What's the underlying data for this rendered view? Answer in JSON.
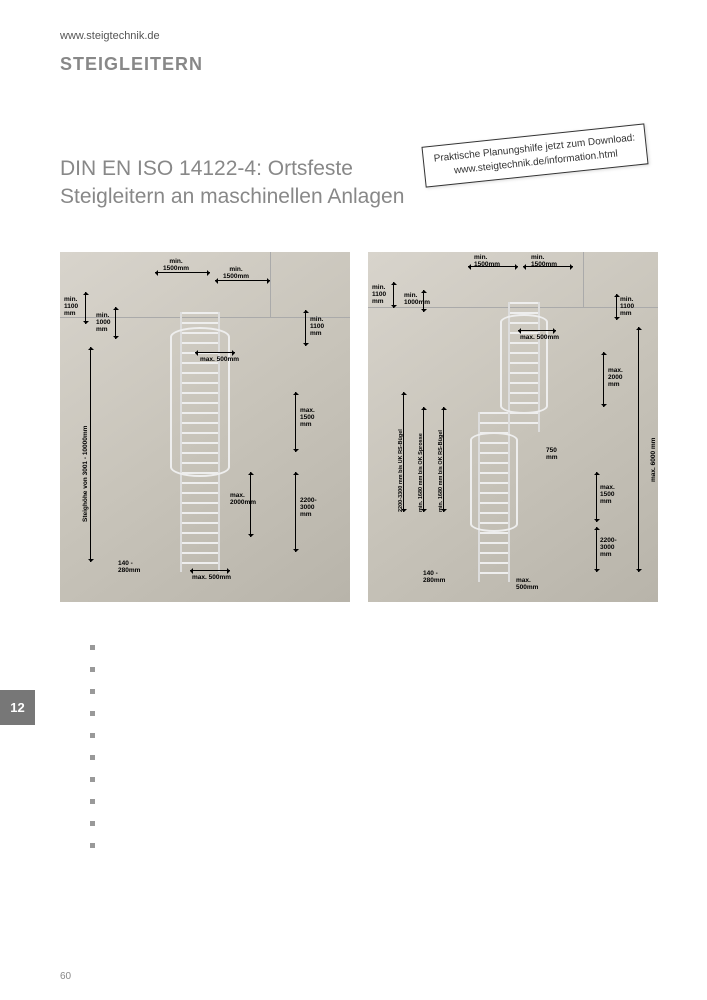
{
  "header": {
    "url": "www.steigtechnik.de",
    "section": "STEIGLEITERN"
  },
  "sticker": {
    "line1": "Praktische Planungshilfe jetzt zum Download:",
    "line2": "www.steigtechnik.de/information.html"
  },
  "heading": {
    "line1": "DIN EN ISO 14122-4: Ortsfeste",
    "line2": "Steigleitern an maschinellen Anlagen"
  },
  "diagram1": {
    "labels": {
      "top_left": "min.\n1500mm",
      "top_right": "min.\n1500mm",
      "side_1100": "min.\n1100\nmm",
      "side_1000": "min.\n1000\nmm",
      "right_1100": "min.\n1100\nmm",
      "max500_top": "max. 500mm",
      "steighoehe": "Steighöhe von 3001 - 10000mm",
      "max1500": "max.\n1500\nmm",
      "max2000": "max.\n2000mm",
      "range2200": "2200-\n3000\nmm",
      "bottom_140": "140 -\n280mm",
      "max500_bot": "max. 500mm"
    }
  },
  "diagram2": {
    "labels": {
      "top_left": "min.\n1500mm",
      "top_right": "min.\n1500mm",
      "side_1100": "min.\n1100\nmm",
      "side_1000": "min.\n1000mm",
      "right_1100": "min.\n1100\nmm",
      "max500_top": "max. 500mm",
      "max2000": "max.\n2000\nmm",
      "max6000": "max. 6000 mm",
      "range_rs": "2200-3300 mm bis UK RS-Bügel",
      "min1680": "min. 1680 mm bis OK Sprosse",
      "min1680_rs": "min. 1680 mm bis OK RS-Bügel",
      "dim750": "750\nmm",
      "max1500": "max.\n1500\nmm",
      "range2200": "2200-\n3000\nmm",
      "bottom_140": "140 -\n280mm",
      "max500_bot": "max.\n500mm"
    }
  },
  "bullets": [
    "",
    "",
    "",
    "",
    "",
    "",
    "",
    "",
    "",
    ""
  ],
  "tab": "12",
  "pagenum": "60"
}
